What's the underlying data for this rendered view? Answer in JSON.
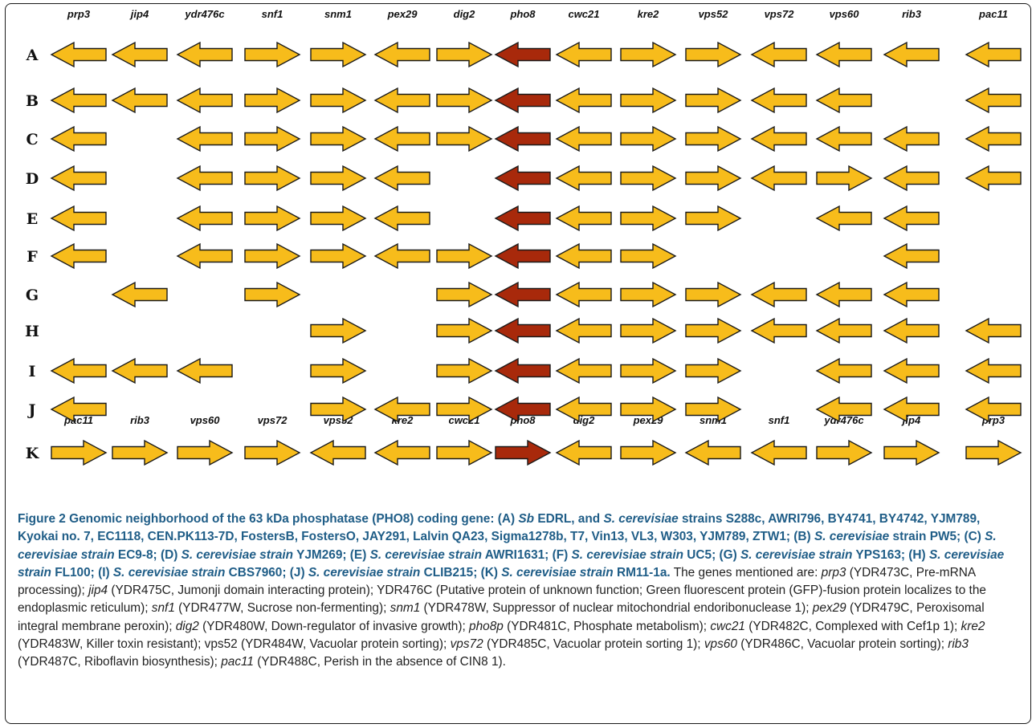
{
  "colors": {
    "gene": "#f7bc1b",
    "pho8": "#a8290b",
    "outline": "#1a1a1a",
    "caption_bold": "#1f5d87",
    "caption_text": "#222222"
  },
  "top_gene_labels": [
    "prp3",
    "jip4",
    "ydr476c",
    "snf1",
    "snm1",
    "pex29",
    "dig2",
    "pho8",
    "cwc21",
    "kre2",
    "vps52",
    "vps72",
    "vps60",
    "rib3",
    "pac11"
  ],
  "k_gene_labels": [
    "pac11",
    "rib3",
    "vps60",
    "vps72",
    "vps52",
    "kre2",
    "cwc21",
    "pho8",
    "dig2",
    "pex29",
    "snm1",
    "snf1",
    "ydr476c",
    "jip4",
    "prp3"
  ],
  "rows": [
    {
      "label": "A",
      "genes": [
        "L",
        "L",
        "L",
        "R",
        "R",
        "L",
        "R",
        "L",
        "L",
        "R",
        "R",
        "L",
        "L",
        "L",
        "L"
      ]
    },
    {
      "label": "B",
      "genes": [
        "L",
        "L",
        "L",
        "R",
        "R",
        "L",
        "R",
        "L",
        "L",
        "R",
        "R",
        "L",
        "L",
        "",
        "L"
      ]
    },
    {
      "label": "C",
      "genes": [
        "L",
        "",
        "L",
        "R",
        "R",
        "L",
        "R",
        "L",
        "L",
        "R",
        "R",
        "L",
        "L",
        "L",
        "L"
      ]
    },
    {
      "label": "D",
      "genes": [
        "L",
        "",
        "L",
        "R",
        "R",
        "L",
        "",
        "L",
        "L",
        "R",
        "R",
        "L",
        "R",
        "L",
        "L"
      ]
    },
    {
      "label": "E",
      "genes": [
        "L",
        "",
        "L",
        "R",
        "R",
        "L",
        "",
        "L",
        "L",
        "R",
        "R",
        "",
        "L",
        "L",
        ""
      ]
    },
    {
      "label": "F",
      "genes": [
        "L",
        "",
        "L",
        "R",
        "R",
        "L",
        "R",
        "L",
        "L",
        "R",
        "",
        "",
        "",
        "L",
        ""
      ]
    },
    {
      "label": "G",
      "genes": [
        "",
        "L",
        "",
        "R",
        "",
        "",
        "R",
        "L",
        "L",
        "R",
        "R",
        "L",
        "L",
        "L",
        ""
      ]
    },
    {
      "label": "H",
      "genes": [
        "",
        "",
        "",
        "",
        "R",
        "",
        "R",
        "L",
        "L",
        "R",
        "R",
        "L",
        "L",
        "L",
        "L"
      ]
    },
    {
      "label": "I",
      "genes": [
        "L",
        "L",
        "L",
        "",
        "R",
        "",
        "R",
        "L",
        "L",
        "R",
        "R",
        "",
        "L",
        "L",
        "L"
      ]
    },
    {
      "label": "J",
      "genes": [
        "L",
        "",
        "",
        "",
        "R",
        "L",
        "R",
        "L",
        "L",
        "R",
        "R",
        "",
        "L",
        "L",
        "L"
      ]
    },
    {
      "label": "K",
      "genes": [
        "R",
        "R",
        "R",
        "R",
        "L",
        "L",
        "R",
        "R",
        "L",
        "R",
        "L",
        "L",
        "R",
        "R",
        "R"
      ]
    }
  ],
  "caption": {
    "figure_label": "Figure 2",
    "title_1": " Genomic neighborhood of the 63 kDa phosphatase (PHO8) coding gene: (A) ",
    "sb": "Sb",
    "title_2": " EDRL, and ",
    "sc": "S. cerevisiae",
    "title_3": " strains S288c, AWRI796, BY4741, BY4742, YJM789, Kyokai no. 7, EC1118, CEN.PK113-7D, FostersB, FostersO, JAY291, Lalvin QA23, Sigma1278b, T7, Vin13, VL3, W303, YJM789, ZTW1; (B) ",
    "b_species": "S. cerevisiae",
    "b_rest": " strain PW5; (C) ",
    "c_species": "S. cerevisiae strain",
    "c_rest": " EC9-8; (D) ",
    "d_species": "S. cerevisiae strain",
    "d_rest": " YJM269; (E) ",
    "e_species": "S. cerevisiae strain",
    "e_rest": " AWRI1631; (F) ",
    "f_species": "S. cerevisiae strain",
    "f_rest": " UC5; (G) ",
    "g_species": "S. cerevisiae strain",
    "g_rest": " YPS163; (H) ",
    "h_species": "S. cerevisiae strain",
    "h_rest": " FL100; (I) ",
    "i_species": "S. cerevisiae strain",
    "i_rest": " CBS7960; (J) ",
    "j_species": "S. cerevisiae strain",
    "j_rest": " CLIB215; (K) ",
    "k_species": "S. cerevisiae strain",
    "k_rest": " RM11-1a.",
    "genes_intro": " The genes mentioned are: ",
    "g1": "prp3",
    "d1": " (YDR473C, Pre-mRNA processing); ",
    "g2": "jip4",
    "d2": " (YDR475C, Jumonji domain interacting protein); YDR476C (Putative protein of unknown function; Green fluorescent protein (GFP)-fusion protein localizes to the endoplasmic reticulum); ",
    "g3": "snf1",
    "d3": " (YDR477W, Sucrose non-fermenting); ",
    "g4": "snm1",
    "d4": " (YDR478W, Suppressor of nuclear mitochondrial endoribonuclease 1); ",
    "g5": "pex29",
    "d5": " (YDR479C, Peroxisomal integral membrane peroxin); ",
    "g6": "dig2",
    "d6": " (YDR480W, Down-regulator of invasive growth); ",
    "g7": "pho8p",
    "d7": " (YDR481C, Phosphate metabolism); ",
    "g8": "cwc21",
    "d8": " (YDR482C, Complexed with Cef1p 1); ",
    "g9": "kre2",
    "d9": " (YDR483W, Killer toxin resistant); vps52 (YDR484W, Vacuolar protein sorting); ",
    "g10": "vps72",
    "d10": " (YDR485C, Vacuolar protein sorting 1); ",
    "g11": "vps60",
    "d11": " (YDR486C, Vacuolar protein sorting); ",
    "g12": "rib3",
    "d12": " (YDR487C, Riboflavin biosynthesis); ",
    "g13": "pac11",
    "d13": " (YDR488C, Perish in the absence of CIN8 1)."
  }
}
